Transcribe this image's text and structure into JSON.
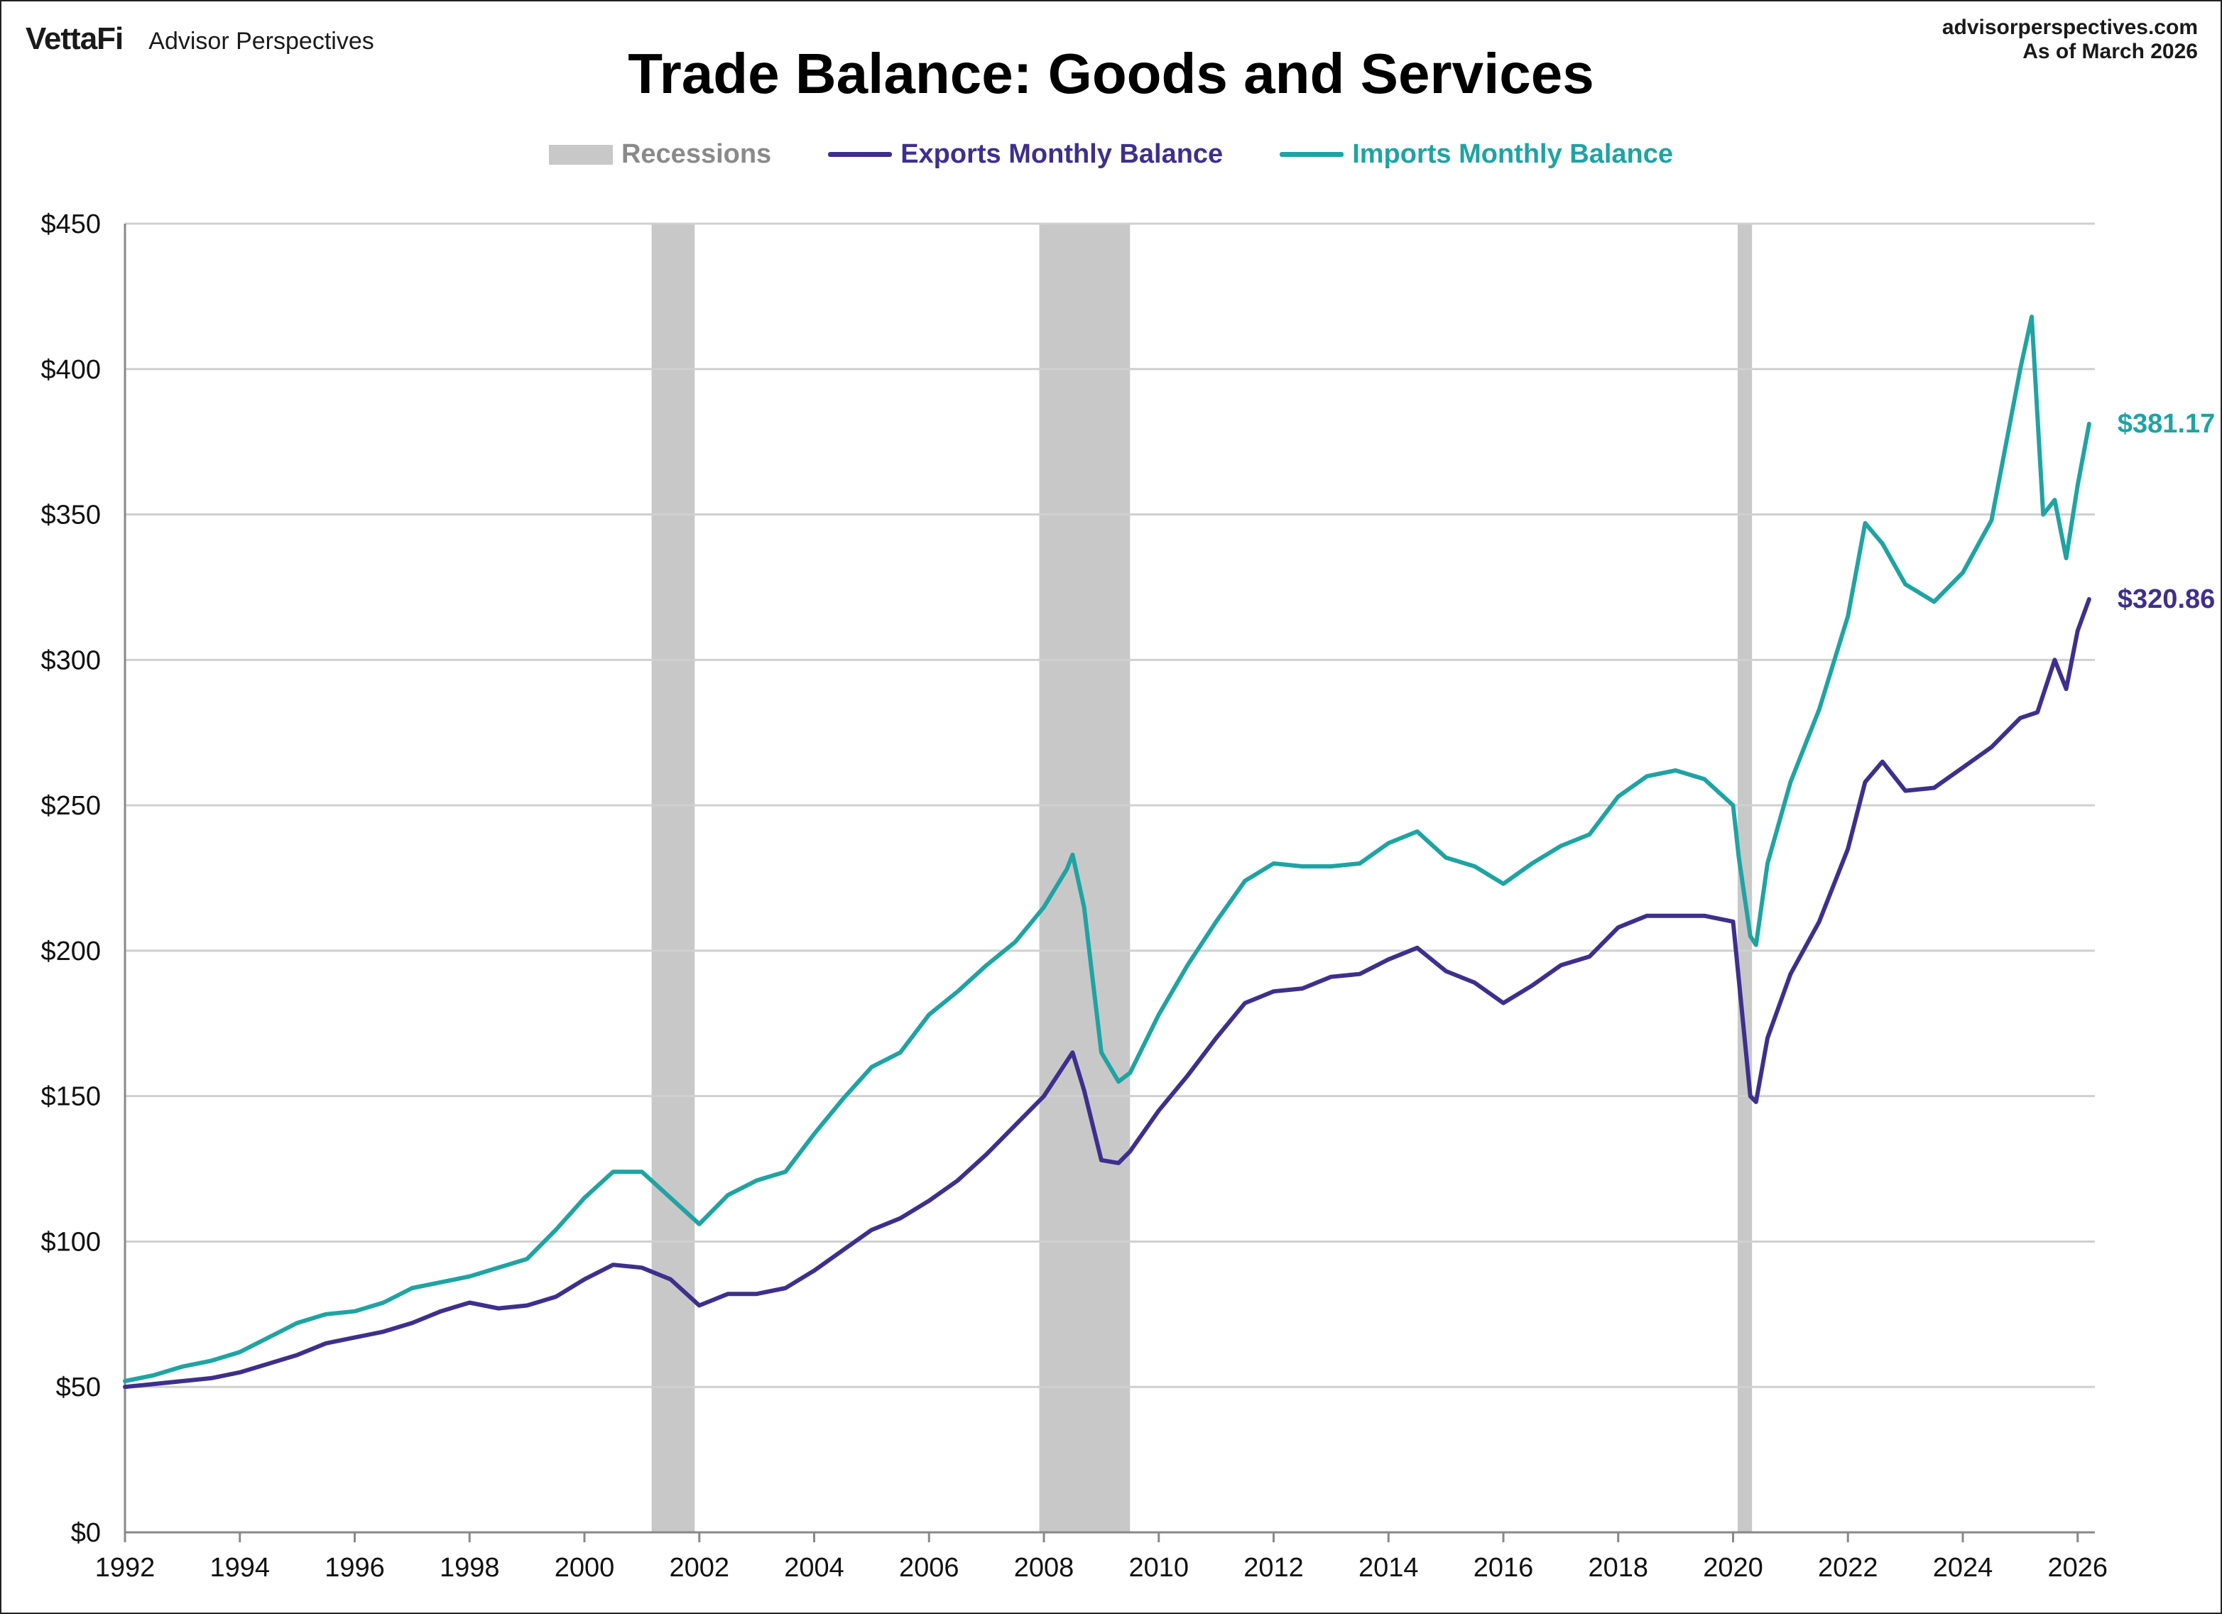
{
  "header": {
    "brand_logo": "VettaFi",
    "brand_name": "Advisor Perspectives",
    "site": "advisorperspectives.com",
    "as_of": "As of March 2026"
  },
  "colors": {
    "exports": "#3f2f8c",
    "imports": "#1fa3a3",
    "recession": "#c8c8c8",
    "grid": "#d0d0d0"
  },
  "chart_data": {
    "type": "line",
    "title": "Trade Balance: Goods and Services",
    "xlabel": "",
    "ylabel": "",
    "x_ticks": [
      "1992",
      "1994",
      "1996",
      "1998",
      "2000",
      "2002",
      "2004",
      "2006",
      "2008",
      "2010",
      "2012",
      "2014",
      "2016",
      "2018",
      "2020",
      "2022",
      "2024",
      "2026"
    ],
    "y_ticks": [
      "$0",
      "$50",
      "$100",
      "$150",
      "$200",
      "$250",
      "$300",
      "$350",
      "$400",
      "$450"
    ],
    "xlim": [
      1992,
      2026.3
    ],
    "ylim": [
      0,
      450
    ],
    "grid": true,
    "legend_position": "top-center",
    "legend": [
      "Recessions",
      "Exports Monthly Balance",
      "Imports Monthly Balance"
    ],
    "recessions": [
      [
        2001.17,
        2001.92
      ],
      [
        2007.92,
        2009.5
      ],
      [
        2020.08,
        2020.33
      ]
    ],
    "series": [
      {
        "name": "Exports Monthly Balance",
        "end_label": "$320.86",
        "points": [
          [
            1992.0,
            50
          ],
          [
            1992.5,
            51
          ],
          [
            1993.0,
            52
          ],
          [
            1993.5,
            53
          ],
          [
            1994.0,
            55
          ],
          [
            1994.5,
            58
          ],
          [
            1995.0,
            61
          ],
          [
            1995.5,
            65
          ],
          [
            1996.0,
            67
          ],
          [
            1996.5,
            69
          ],
          [
            1997.0,
            72
          ],
          [
            1997.5,
            76
          ],
          [
            1998.0,
            79
          ],
          [
            1998.5,
            77
          ],
          [
            1999.0,
            78
          ],
          [
            1999.5,
            81
          ],
          [
            2000.0,
            87
          ],
          [
            2000.5,
            92
          ],
          [
            2001.0,
            91
          ],
          [
            2001.5,
            87
          ],
          [
            2002.0,
            78
          ],
          [
            2002.5,
            82
          ],
          [
            2003.0,
            82
          ],
          [
            2003.5,
            84
          ],
          [
            2004.0,
            90
          ],
          [
            2004.5,
            97
          ],
          [
            2005.0,
            104
          ],
          [
            2005.5,
            108
          ],
          [
            2006.0,
            114
          ],
          [
            2006.5,
            121
          ],
          [
            2007.0,
            130
          ],
          [
            2007.5,
            140
          ],
          [
            2008.0,
            150
          ],
          [
            2008.4,
            162
          ],
          [
            2008.5,
            165
          ],
          [
            2008.7,
            152
          ],
          [
            2009.0,
            128
          ],
          [
            2009.3,
            127
          ],
          [
            2009.5,
            131
          ],
          [
            2010.0,
            145
          ],
          [
            2010.5,
            157
          ],
          [
            2011.0,
            170
          ],
          [
            2011.5,
            182
          ],
          [
            2012.0,
            186
          ],
          [
            2012.5,
            187
          ],
          [
            2013.0,
            191
          ],
          [
            2013.5,
            192
          ],
          [
            2014.0,
            197
          ],
          [
            2014.5,
            201
          ],
          [
            2015.0,
            193
          ],
          [
            2015.5,
            189
          ],
          [
            2016.0,
            182
          ],
          [
            2016.5,
            188
          ],
          [
            2017.0,
            195
          ],
          [
            2017.5,
            198
          ],
          [
            2018.0,
            208
          ],
          [
            2018.5,
            212
          ],
          [
            2019.0,
            212
          ],
          [
            2019.5,
            212
          ],
          [
            2020.0,
            210
          ],
          [
            2020.1,
            190
          ],
          [
            2020.3,
            150
          ],
          [
            2020.4,
            148
          ],
          [
            2020.6,
            170
          ],
          [
            2021.0,
            192
          ],
          [
            2021.5,
            210
          ],
          [
            2022.0,
            235
          ],
          [
            2022.3,
            258
          ],
          [
            2022.6,
            265
          ],
          [
            2023.0,
            255
          ],
          [
            2023.5,
            256
          ],
          [
            2024.0,
            263
          ],
          [
            2024.5,
            270
          ],
          [
            2025.0,
            280
          ],
          [
            2025.3,
            282
          ],
          [
            2025.6,
            300
          ],
          [
            2025.8,
            290
          ],
          [
            2026.0,
            310
          ],
          [
            2026.2,
            320.86
          ]
        ]
      },
      {
        "name": "Imports Monthly Balance",
        "end_label": "$381.17",
        "points": [
          [
            1992.0,
            52
          ],
          [
            1992.5,
            54
          ],
          [
            1993.0,
            57
          ],
          [
            1993.5,
            59
          ],
          [
            1994.0,
            62
          ],
          [
            1994.5,
            67
          ],
          [
            1995.0,
            72
          ],
          [
            1995.5,
            75
          ],
          [
            1996.0,
            76
          ],
          [
            1996.5,
            79
          ],
          [
            1997.0,
            84
          ],
          [
            1997.5,
            86
          ],
          [
            1998.0,
            88
          ],
          [
            1998.5,
            91
          ],
          [
            1999.0,
            94
          ],
          [
            1999.5,
            104
          ],
          [
            2000.0,
            115
          ],
          [
            2000.5,
            124
          ],
          [
            2001.0,
            124
          ],
          [
            2001.5,
            115
          ],
          [
            2002.0,
            106
          ],
          [
            2002.5,
            116
          ],
          [
            2003.0,
            121
          ],
          [
            2003.5,
            124
          ],
          [
            2004.0,
            137
          ],
          [
            2004.5,
            149
          ],
          [
            2005.0,
            160
          ],
          [
            2005.5,
            165
          ],
          [
            2006.0,
            178
          ],
          [
            2006.5,
            186
          ],
          [
            2007.0,
            195
          ],
          [
            2007.5,
            203
          ],
          [
            2008.0,
            215
          ],
          [
            2008.4,
            228
          ],
          [
            2008.5,
            233
          ],
          [
            2008.7,
            215
          ],
          [
            2009.0,
            165
          ],
          [
            2009.3,
            155
          ],
          [
            2009.5,
            158
          ],
          [
            2010.0,
            178
          ],
          [
            2010.5,
            195
          ],
          [
            2011.0,
            210
          ],
          [
            2011.5,
            224
          ],
          [
            2012.0,
            230
          ],
          [
            2012.5,
            229
          ],
          [
            2013.0,
            229
          ],
          [
            2013.5,
            230
          ],
          [
            2014.0,
            237
          ],
          [
            2014.5,
            241
          ],
          [
            2015.0,
            232
          ],
          [
            2015.5,
            229
          ],
          [
            2016.0,
            223
          ],
          [
            2016.5,
            230
          ],
          [
            2017.0,
            236
          ],
          [
            2017.5,
            240
          ],
          [
            2018.0,
            253
          ],
          [
            2018.5,
            260
          ],
          [
            2019.0,
            262
          ],
          [
            2019.5,
            259
          ],
          [
            2020.0,
            250
          ],
          [
            2020.1,
            232
          ],
          [
            2020.3,
            205
          ],
          [
            2020.4,
            202
          ],
          [
            2020.6,
            230
          ],
          [
            2021.0,
            258
          ],
          [
            2021.5,
            283
          ],
          [
            2022.0,
            315
          ],
          [
            2022.3,
            347
          ],
          [
            2022.6,
            340
          ],
          [
            2023.0,
            326
          ],
          [
            2023.5,
            320
          ],
          [
            2024.0,
            330
          ],
          [
            2024.5,
            348
          ],
          [
            2025.0,
            400
          ],
          [
            2025.2,
            418
          ],
          [
            2025.4,
            350
          ],
          [
            2025.6,
            355
          ],
          [
            2025.8,
            335
          ],
          [
            2026.0,
            360
          ],
          [
            2026.2,
            381.17
          ]
        ]
      }
    ]
  }
}
